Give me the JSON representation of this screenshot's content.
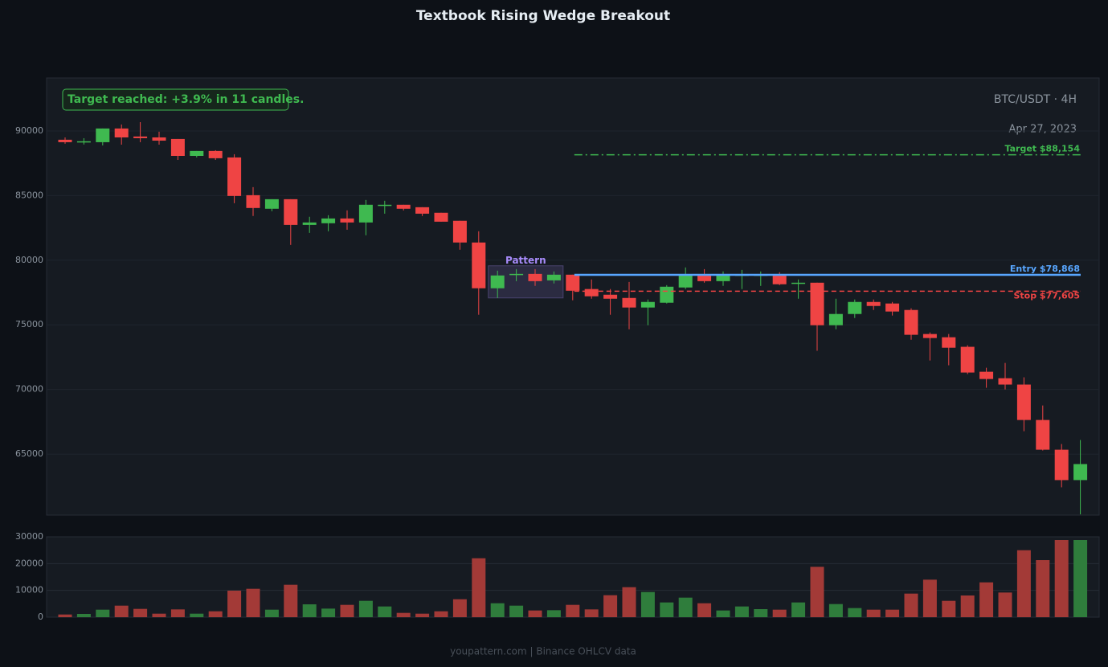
{
  "chart_data": [
    {
      "type": "candlestick",
      "title": "Textbook Rising Wedge Breakout",
      "annotation": "Target reached: +3.9% in 11 candles.",
      "symbol": "BTC/USDT · 4H",
      "date": "Apr 27, 2023",
      "footer": "youpattern.com | Binance OHLCV data",
      "up_color": "#3fb950",
      "down_color": "#ef4444",
      "open": [
        89320,
        89150,
        89130,
        90190,
        89570,
        89500,
        89380,
        88070,
        88450,
        87950,
        85030,
        83980,
        84720,
        82730,
        82860,
        83230,
        82920,
        84230,
        84290,
        84100,
        83670,
        83050,
        81370,
        77830,
        78880,
        78940,
        78440,
        78880,
        77770,
        77330,
        77080,
        76340,
        76710,
        77890,
        78880,
        78380,
        78820,
        78820,
        78880,
        78200,
        78260,
        74970,
        75840,
        76770,
        76650,
        76150,
        74290,
        74040,
        73300,
        71370,
        70870,
        70380,
        67640,
        65340,
        62990
      ],
      "high": [
        89500,
        89440,
        90190,
        90500,
        90680,
        89940,
        89380,
        88450,
        88510,
        88200,
        85650,
        84720,
        84720,
        83360,
        83480,
        83860,
        84660,
        84600,
        84290,
        84100,
        83670,
        83050,
        82240,
        79190,
        79310,
        79310,
        79130,
        78880,
        78510,
        77770,
        78320,
        76960,
        78070,
        79440,
        79310,
        79130,
        79250,
        79130,
        79070,
        78510,
        78260,
        77020,
        76960,
        76960,
        76770,
        76280,
        74410,
        74290,
        73420,
        71680,
        72050,
        70940,
        68760,
        65780,
        66090
      ],
      "low": [
        89010,
        88950,
        88880,
        88940,
        89130,
        88940,
        87760,
        87950,
        87760,
        84410,
        83420,
        83790,
        81180,
        82110,
        82240,
        82360,
        81930,
        83600,
        83850,
        83420,
        82980,
        80810,
        75780,
        77080,
        78380,
        78010,
        78200,
        76900,
        77020,
        75780,
        74660,
        74970,
        76650,
        77770,
        78260,
        78010,
        77770,
        78010,
        78070,
        77020,
        72990,
        74660,
        75530,
        76150,
        75720,
        73850,
        72240,
        71870,
        71190,
        70130,
        70000,
        66770,
        65280,
        62430,
        60340
      ],
      "close": [
        89130,
        89200,
        90190,
        89500,
        89440,
        89250,
        88070,
        88450,
        87890,
        84970,
        84040,
        84720,
        82730,
        82920,
        83230,
        82920,
        84290,
        84290,
        83980,
        83600,
        82980,
        81370,
        77830,
        78820,
        78940,
        78380,
        78880,
        77640,
        77210,
        77020,
        76340,
        76770,
        77950,
        78820,
        78380,
        78880,
        78880,
        78880,
        78140,
        78260,
        74970,
        75840,
        76770,
        76460,
        76030,
        74230,
        73980,
        73230,
        71310,
        70810,
        70380,
        67640,
        65340,
        62990,
        64230
      ],
      "ylim": [
        60280,
        94100
      ],
      "yticks": [
        65000,
        70000,
        75000,
        80000,
        85000,
        90000
      ],
      "grid": true,
      "levels": [
        {
          "label": "Target $88,154",
          "value": 88154,
          "color": "#3fb950",
          "style": "dashdot",
          "start": 27
        },
        {
          "label": "Entry $78,868",
          "value": 78868,
          "color": "#58a6ff",
          "style": "solid",
          "start": 27
        },
        {
          "label": "Stop $77,605",
          "value": 77605,
          "color": "#ef4444",
          "style": "dashed",
          "start": 27
        }
      ],
      "pattern": {
        "label": "Pattern",
        "start": 23,
        "end": 26,
        "low": 77080,
        "high": 79570,
        "color": "#a78bfa"
      }
    },
    {
      "type": "bar",
      "values": [
        1000,
        1200,
        2800,
        4300,
        3100,
        1300,
        2900,
        1300,
        2200,
        9900,
        10600,
        2800,
        12100,
        4800,
        3200,
        4600,
        6100,
        4000,
        1600,
        1300,
        2200,
        6700,
        22000,
        5200,
        4300,
        2500,
        2600,
        4600,
        2900,
        8200,
        11200,
        9400,
        5500,
        7300,
        5200,
        2500,
        4000,
        3000,
        2800,
        5500,
        18800,
        4900,
        3400,
        2800,
        2800,
        8800,
        14000,
        6100,
        8100,
        13000,
        9200,
        25000,
        21300,
        28800,
        28800
      ],
      "up_color": "#2f7d3c",
      "down_color": "#a33a37",
      "ylim": [
        0,
        30000
      ],
      "yticks": [
        0,
        10000,
        20000,
        30000
      ],
      "grid": true
    }
  ]
}
